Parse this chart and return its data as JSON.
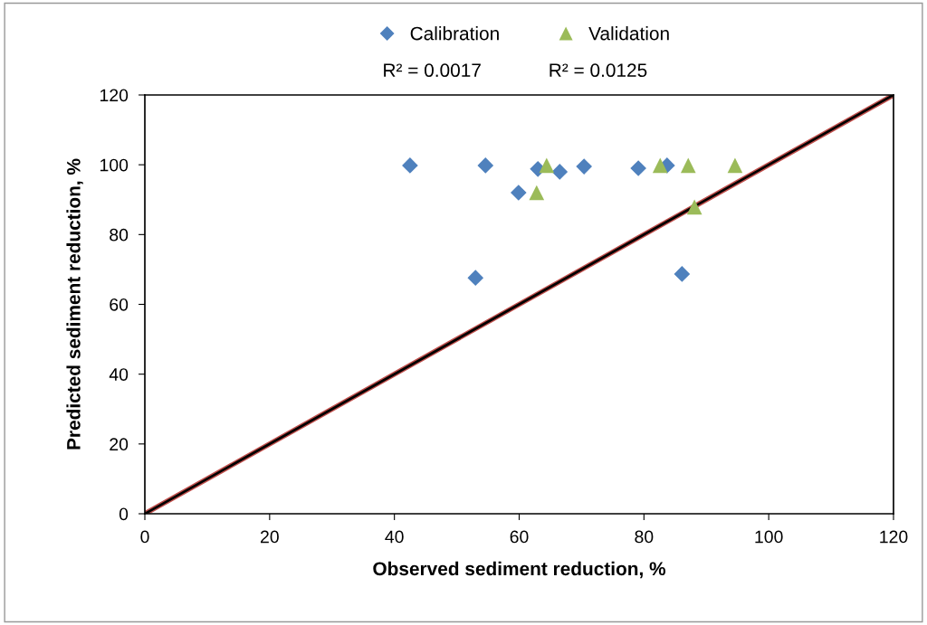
{
  "chart_data": {
    "type": "scatter",
    "xlabel": "Observed sediment reduction, %",
    "ylabel": "Predicted sediment reduction, %",
    "xlim": [
      0,
      120
    ],
    "ylim": [
      0,
      120
    ],
    "xticks": [
      0,
      20,
      40,
      60,
      80,
      100,
      120
    ],
    "yticks": [
      0,
      20,
      40,
      60,
      80,
      100,
      120
    ],
    "grid": false,
    "legend": "top",
    "series": [
      {
        "name": "Calibration",
        "color": "#4f81bd",
        "marker": "diamond",
        "x": [
          42.5,
          54.6,
          53.0,
          59.9,
          63.0,
          66.5,
          70.4,
          79.1,
          83.7,
          86.1
        ],
        "values": [
          99.8,
          99.8,
          67.6,
          92.0,
          98.8,
          98.0,
          99.5,
          99.0,
          99.8,
          68.7
        ]
      },
      {
        "name": "Validation",
        "color": "#9bbb59",
        "marker": "triangle",
        "x": [
          64.4,
          82.6,
          87.1,
          94.6,
          62.8,
          88.1
        ],
        "values": [
          99.8,
          99.8,
          99.8,
          99.8,
          92.0,
          87.9
        ]
      },
      {
        "type": "line",
        "color": "#000000",
        "x": [
          0,
          120
        ],
        "values": [
          0,
          120
        ]
      }
    ],
    "annotations": [
      "R² = 0.0017",
      "R² = 0.0125"
    ]
  }
}
